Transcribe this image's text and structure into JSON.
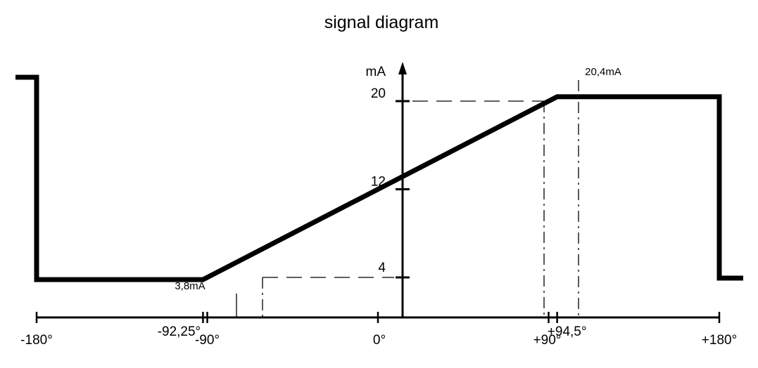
{
  "title": "signal diagram",
  "y_axis": {
    "unit_label": "mA",
    "ticks": [
      {
        "value": 20,
        "label": "20"
      },
      {
        "value": 12,
        "label": "12"
      },
      {
        "value": 4,
        "label": "4"
      }
    ]
  },
  "x_axis": {
    "ticks": [
      {
        "value": -180,
        "label": "-180°"
      },
      {
        "value": -92.25,
        "label": "-92,25°"
      },
      {
        "value": -90,
        "label": "-90°"
      },
      {
        "value": 0,
        "label": "0°"
      },
      {
        "value": 90,
        "label": "+90°"
      },
      {
        "value": 94.5,
        "label": "+94,5°"
      },
      {
        "value": 180,
        "label": "+180°"
      }
    ]
  },
  "annotations": {
    "min_current": "3,8mA",
    "max_current": "20,4mA"
  },
  "chart_data": {
    "type": "line",
    "x_unit": "°",
    "y_unit": "mA",
    "xlim": [
      -180,
      180
    ],
    "ylim": [
      4,
      20
    ],
    "series": [
      {
        "x": [
          -92.25,
          -90,
          0,
          90,
          94.5
        ],
        "y": [
          3.8,
          4,
          12,
          20,
          20.4
        ]
      }
    ],
    "grid": false
  },
  "colors": {
    "line": "#000000",
    "background": "#ffffff"
  }
}
